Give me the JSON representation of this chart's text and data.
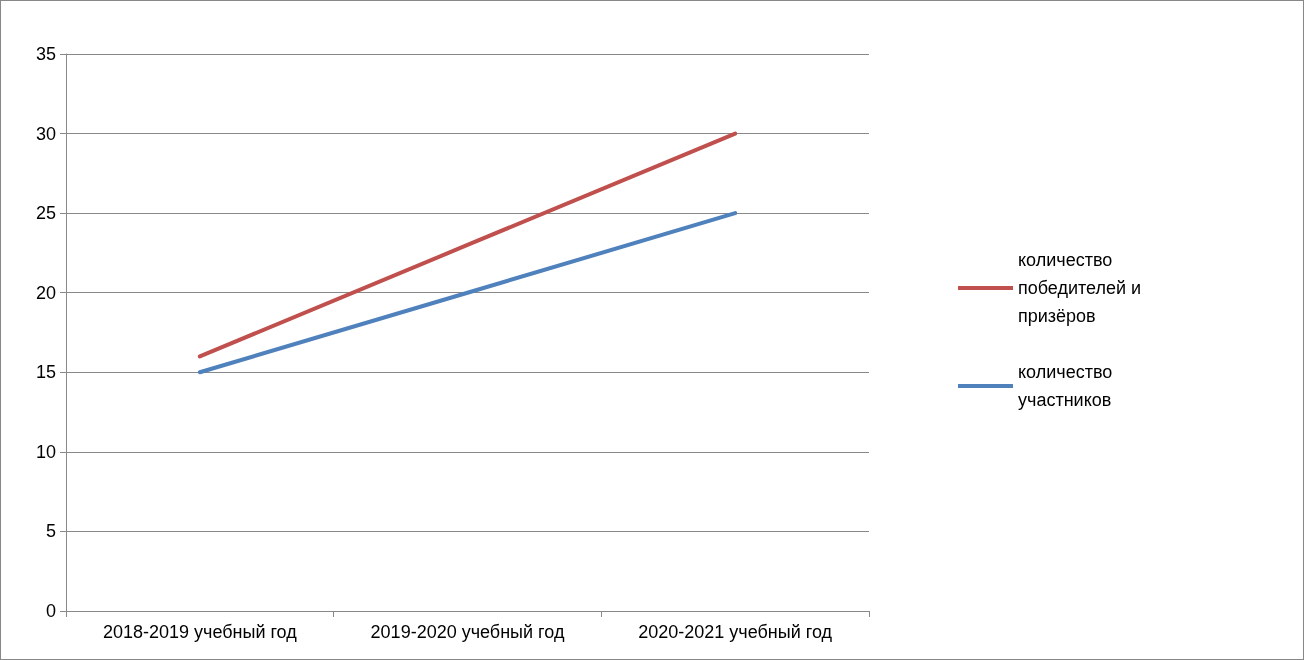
{
  "chart_data": {
    "type": "line",
    "categories": [
      "2018-2019 учебный год",
      "2019-2020 учебный год",
      "2020-2021 учебный год"
    ],
    "series": [
      {
        "name": "количество победителей и призёров",
        "color": "#c0504d",
        "values": [
          16,
          23,
          30
        ]
      },
      {
        "name": "количество участников",
        "color": "#4f81bd",
        "values": [
          15,
          20,
          25
        ]
      }
    ],
    "ylim": [
      0,
      35
    ],
    "yticks": [
      0,
      5,
      10,
      15,
      20,
      25,
      30,
      35
    ],
    "grid": "y",
    "legend": "right",
    "marker": "none",
    "line_style": "solid"
  }
}
